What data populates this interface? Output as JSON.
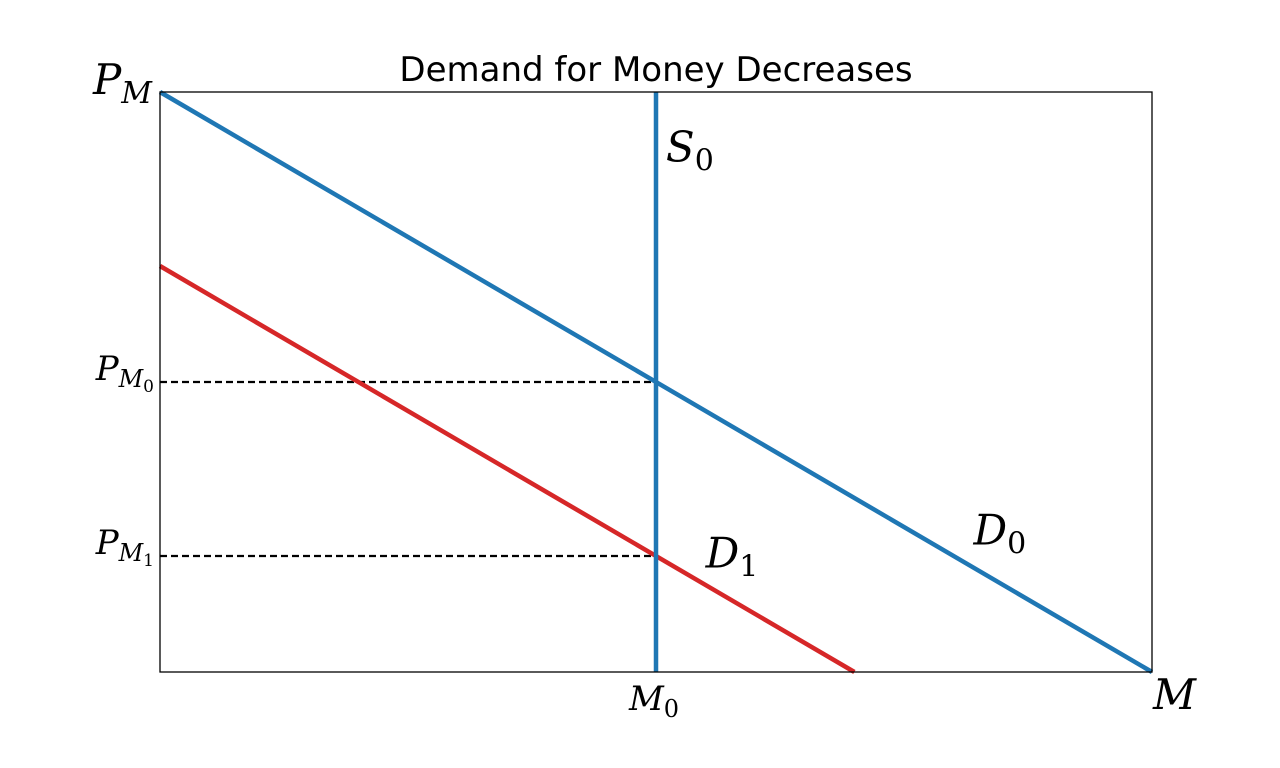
{
  "chart_data": {
    "type": "line",
    "title": "Demand for Money Decreases",
    "xlabel": {
      "base": "M",
      "sub": ""
    },
    "ylabel": {
      "base": "P",
      "sub": "M"
    },
    "xlim": [
      0,
      10
    ],
    "ylim": [
      0,
      10
    ],
    "grid": false,
    "legend": "none",
    "xticks": [
      {
        "value": 5,
        "base": "M",
        "sub": "0"
      }
    ],
    "yticks": [
      {
        "value": 5,
        "base": "P",
        "sub": "M",
        "sub2": "0"
      },
      {
        "value": 2,
        "base": "P",
        "sub": "M",
        "sub2": "1"
      }
    ],
    "series": [
      {
        "name": "D0",
        "color": "#1f77b4",
        "x": [
          0,
          10
        ],
        "y": [
          10,
          0
        ]
      },
      {
        "name": "D1",
        "color": "#d62728",
        "x": [
          0,
          7
        ],
        "y": [
          7,
          0
        ]
      },
      {
        "name": "S0",
        "color": "#1f77b4",
        "x": [
          5,
          5
        ],
        "y": [
          0,
          10
        ]
      }
    ],
    "reference_lines": [
      {
        "x": [
          0,
          5
        ],
        "y": [
          5,
          5
        ],
        "style": "dashed",
        "color": "#000000"
      },
      {
        "x": [
          0,
          5
        ],
        "y": [
          2,
          2
        ],
        "style": "dashed",
        "color": "#000000"
      }
    ],
    "annotations": [
      {
        "base": "S",
        "sub": "0",
        "x": 5.1,
        "y": 8.8
      },
      {
        "base": "D",
        "sub": "0",
        "x": 8.2,
        "y": 2.2
      },
      {
        "base": "D",
        "sub": "1",
        "x": 5.5,
        "y": 1.8
      }
    ]
  }
}
